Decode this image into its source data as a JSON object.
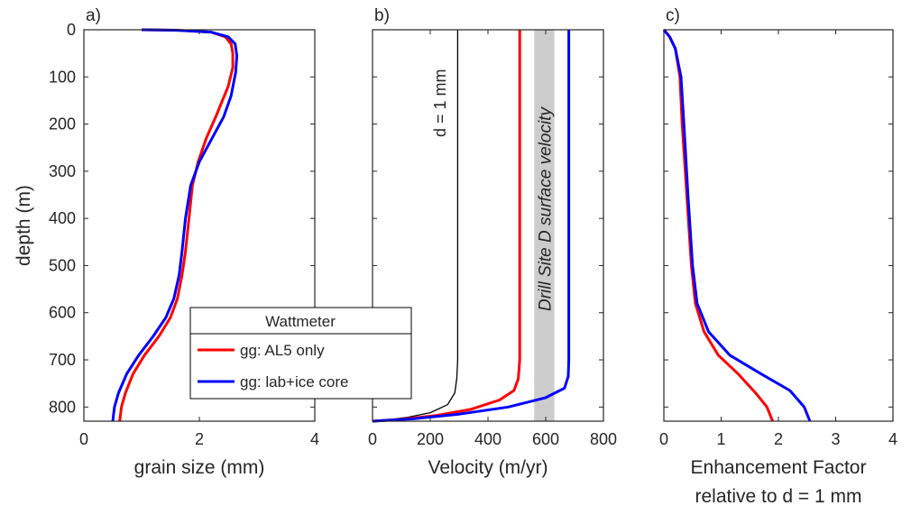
{
  "chart_data": [
    {
      "panel": "a)",
      "type": "line",
      "xlabel": "grain size (mm)",
      "ylabel": "depth (m)",
      "xlim": [
        0,
        4
      ],
      "ylim": [
        0,
        830
      ],
      "y_reversed": true,
      "xticks": [
        "0",
        "2",
        "4"
      ],
      "xtick_values": [
        0,
        2,
        4
      ],
      "yticks": [
        "0",
        "100",
        "200",
        "300",
        "400",
        "500",
        "600",
        "700",
        "800"
      ],
      "ytick_values": [
        0,
        100,
        200,
        300,
        400,
        500,
        600,
        700,
        800
      ],
      "legend": {
        "title": "Wattmeter",
        "entries": [
          "gg: AL5 only",
          "gg: lab+ice core"
        ]
      },
      "series": [
        {
          "name": "gg: AL5 only",
          "color": "#ff0000",
          "points": [
            [
              1.0,
              0
            ],
            [
              1.6,
              1
            ],
            [
              2.2,
              5
            ],
            [
              2.45,
              15
            ],
            [
              2.55,
              30
            ],
            [
              2.58,
              50
            ],
            [
              2.58,
              80
            ],
            [
              2.5,
              120
            ],
            [
              2.3,
              180
            ],
            [
              2.12,
              230
            ],
            [
              1.98,
              280
            ],
            [
              1.88,
              330
            ],
            [
              1.82,
              400
            ],
            [
              1.76,
              470
            ],
            [
              1.7,
              520
            ],
            [
              1.62,
              570
            ],
            [
              1.5,
              610
            ],
            [
              1.3,
              650
            ],
            [
              1.05,
              690
            ],
            [
              0.85,
              730
            ],
            [
              0.72,
              770
            ],
            [
              0.65,
              800
            ],
            [
              0.62,
              830
            ]
          ]
        },
        {
          "name": "gg: lab+ice core",
          "color": "#0000ff",
          "points": [
            [
              1.0,
              0
            ],
            [
              1.6,
              1
            ],
            [
              2.2,
              5
            ],
            [
              2.5,
              15
            ],
            [
              2.62,
              30
            ],
            [
              2.65,
              55
            ],
            [
              2.63,
              90
            ],
            [
              2.55,
              140
            ],
            [
              2.42,
              185
            ],
            [
              2.22,
              230
            ],
            [
              2.0,
              280
            ],
            [
              1.85,
              330
            ],
            [
              1.76,
              400
            ],
            [
              1.7,
              470
            ],
            [
              1.65,
              520
            ],
            [
              1.56,
              570
            ],
            [
              1.42,
              610
            ],
            [
              1.2,
              650
            ],
            [
              0.95,
              690
            ],
            [
              0.74,
              730
            ],
            [
              0.6,
              770
            ],
            [
              0.53,
              800
            ],
            [
              0.5,
              830
            ]
          ]
        }
      ]
    },
    {
      "panel": "b)",
      "type": "line",
      "xlabel": "Velocity (m/yr)",
      "xlim": [
        0,
        800
      ],
      "ylim": [
        0,
        830
      ],
      "y_reversed": true,
      "xticks": [
        "0",
        "200",
        "400",
        "600",
        "800"
      ],
      "xtick_values": [
        0,
        200,
        400,
        600,
        800
      ],
      "band": {
        "x0": 560,
        "x1": 630,
        "color": "#cccccc"
      },
      "annotations": [
        "d = 1 mm",
        "Drill Site D surface velocity"
      ],
      "series": [
        {
          "name": "d = 1 mm",
          "color": "#000000",
          "points": [
            [
              295,
              0
            ],
            [
              295,
              700
            ],
            [
              292,
              740
            ],
            [
              285,
              770
            ],
            [
              260,
              795
            ],
            [
              200,
              812
            ],
            [
              120,
              822
            ],
            [
              40,
              828
            ],
            [
              0,
              830
            ]
          ]
        },
        {
          "name": "gg: AL5 only",
          "color": "#ff0000",
          "points": [
            [
              510,
              0
            ],
            [
              510,
              700
            ],
            [
              505,
              740
            ],
            [
              490,
              765
            ],
            [
              440,
              785
            ],
            [
              340,
              805
            ],
            [
              220,
              818
            ],
            [
              100,
              826
            ],
            [
              0,
              830
            ]
          ]
        },
        {
          "name": "gg: lab+ice core",
          "color": "#0000ff",
          "points": [
            [
              680,
              0
            ],
            [
              680,
              700
            ],
            [
              678,
              735
            ],
            [
              665,
              760
            ],
            [
              600,
              780
            ],
            [
              470,
              800
            ],
            [
              300,
              815
            ],
            [
              140,
              825
            ],
            [
              0,
              830
            ]
          ]
        }
      ]
    },
    {
      "panel": "c)",
      "type": "line",
      "xlabel": "Enhancement Factor",
      "xlabel2": "relative to d = 1 mm",
      "xlim": [
        0,
        4
      ],
      "ylim": [
        0,
        830
      ],
      "y_reversed": true,
      "xticks": [
        "0",
        "1",
        "2",
        "3",
        "4"
      ],
      "xtick_values": [
        0,
        1,
        2,
        3,
        4
      ],
      "series": [
        {
          "name": "gg: AL5 only",
          "color": "#ff0000",
          "points": [
            [
              0,
              0
            ],
            [
              0.1,
              15
            ],
            [
              0.2,
              40
            ],
            [
              0.28,
              100
            ],
            [
              0.32,
              200
            ],
            [
              0.4,
              350
            ],
            [
              0.48,
              500
            ],
            [
              0.55,
              580
            ],
            [
              0.7,
              640
            ],
            [
              0.95,
              690
            ],
            [
              1.3,
              730
            ],
            [
              1.6,
              770
            ],
            [
              1.8,
              800
            ],
            [
              1.9,
              830
            ]
          ]
        },
        {
          "name": "gg: lab+ice core",
          "color": "#0000ff",
          "points": [
            [
              0,
              0
            ],
            [
              0.1,
              15
            ],
            [
              0.2,
              40
            ],
            [
              0.3,
              100
            ],
            [
              0.35,
              200
            ],
            [
              0.42,
              350
            ],
            [
              0.5,
              500
            ],
            [
              0.58,
              580
            ],
            [
              0.78,
              640
            ],
            [
              1.15,
              690
            ],
            [
              1.7,
              730
            ],
            [
              2.2,
              765
            ],
            [
              2.45,
              800
            ],
            [
              2.55,
              830
            ]
          ]
        }
      ]
    }
  ]
}
